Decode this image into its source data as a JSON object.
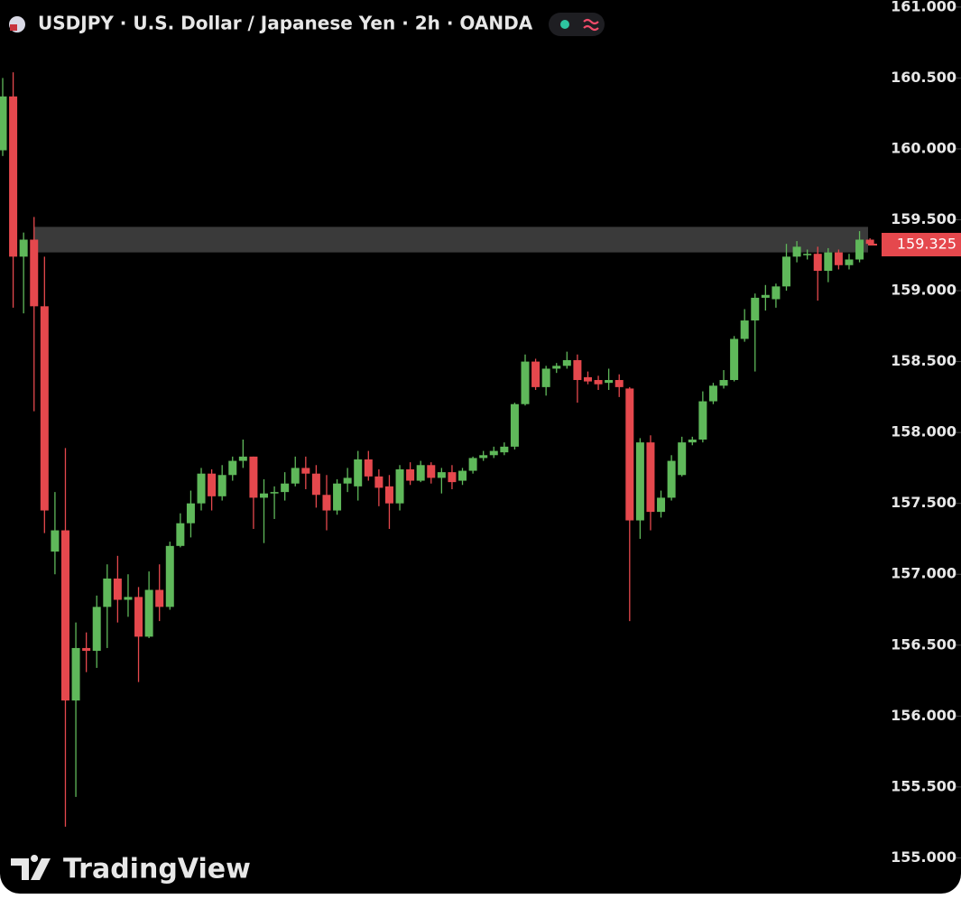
{
  "chart_data": {
    "type": "candlestick",
    "title": "USDJPY · U.S. Dollar / Japanese Yen · 2h · OANDA",
    "watermark": "TradingView",
    "up_color": "#5fb85a",
    "down_color": "#e5484d",
    "open": [
      159.99,
      160.37,
      159.24,
      159.36,
      158.89,
      157.16,
      157.31,
      156.11,
      156.48,
      156.46,
      156.77,
      156.97,
      156.82,
      156.84,
      156.56,
      156.89,
      156.77,
      157.2,
      157.36,
      157.5,
      157.71,
      157.55,
      157.7,
      157.8,
      157.83,
      157.54,
      157.57,
      157.58,
      157.64,
      157.75,
      157.71,
      157.56,
      157.45,
      157.64,
      157.62,
      157.81,
      157.69,
      157.62,
      157.5,
      157.74,
      157.66,
      157.77,
      157.68,
      157.72,
      157.66,
      157.73,
      157.82,
      157.84,
      157.86,
      157.9,
      158.2,
      158.5,
      158.32,
      158.45,
      158.47,
      158.51,
      158.39,
      158.37,
      158.35,
      158.37,
      158.31,
      157.38,
      157.93,
      157.44,
      157.54,
      157.7,
      157.93,
      157.95,
      158.22,
      158.33,
      158.37,
      158.66,
      158.79,
      158.95,
      158.94,
      159.03,
      159.24,
      159.25,
      159.26,
      159.14,
      159.27,
      159.18,
      159.22,
      159.36
    ],
    "high": [
      160.5,
      160.54,
      159.41,
      159.52,
      159.24,
      157.58,
      157.89,
      156.66,
      156.59,
      156.85,
      157.07,
      157.13,
      157.0,
      156.91,
      157.02,
      157.07,
      157.23,
      157.43,
      157.59,
      157.75,
      157.74,
      157.77,
      157.83,
      157.95,
      157.83,
      157.67,
      157.62,
      157.72,
      157.83,
      157.83,
      157.77,
      157.7,
      157.67,
      157.75,
      157.87,
      157.87,
      157.74,
      157.7,
      157.77,
      157.79,
      157.8,
      157.79,
      157.75,
      157.77,
      157.75,
      157.83,
      157.87,
      157.9,
      157.93,
      158.21,
      158.55,
      158.52,
      158.47,
      158.49,
      158.57,
      158.55,
      158.43,
      158.4,
      158.45,
      158.41,
      158.32,
      157.96,
      157.98,
      157.59,
      157.84,
      157.97,
      157.97,
      158.29,
      158.35,
      158.44,
      158.68,
      158.87,
      158.98,
      159.04,
      159.05,
      159.33,
      159.35,
      159.29,
      159.31,
      159.3,
      159.29,
      159.26,
      159.42,
      159.37
    ],
    "low": [
      159.95,
      158.88,
      158.84,
      158.15,
      157.29,
      157.0,
      155.22,
      155.43,
      156.31,
      156.34,
      156.48,
      156.66,
      156.7,
      156.24,
      156.55,
      156.67,
      156.75,
      157.19,
      157.26,
      157.45,
      157.45,
      157.52,
      157.66,
      157.75,
      157.32,
      157.22,
      157.39,
      157.52,
      157.62,
      157.6,
      157.47,
      157.31,
      157.42,
      157.58,
      157.52,
      157.66,
      157.48,
      157.32,
      157.45,
      157.63,
      157.65,
      157.64,
      157.57,
      157.6,
      157.63,
      157.71,
      157.8,
      157.82,
      157.84,
      157.88,
      158.19,
      158.3,
      158.26,
      158.42,
      158.45,
      158.21,
      158.34,
      158.3,
      158.3,
      158.25,
      156.67,
      157.25,
      157.31,
      157.4,
      157.52,
      157.69,
      157.91,
      157.93,
      158.2,
      158.31,
      158.36,
      158.64,
      158.43,
      158.86,
      158.88,
      159.0,
      159.2,
      159.22,
      158.93,
      159.06,
      159.15,
      159.15,
      159.2,
      159.32
    ],
    "close": [
      160.37,
      159.24,
      159.36,
      158.89,
      157.45,
      157.31,
      156.11,
      156.48,
      156.46,
      156.77,
      156.97,
      156.82,
      156.84,
      156.56,
      156.89,
      156.77,
      157.2,
      157.36,
      157.5,
      157.71,
      157.55,
      157.7,
      157.8,
      157.83,
      157.54,
      157.57,
      157.58,
      157.64,
      157.75,
      157.71,
      157.56,
      157.45,
      157.64,
      157.68,
      157.81,
      157.69,
      157.61,
      157.5,
      157.74,
      157.66,
      157.77,
      157.68,
      157.72,
      157.65,
      157.73,
      157.82,
      157.84,
      157.87,
      157.9,
      158.2,
      158.5,
      158.32,
      158.45,
      158.47,
      158.51,
      158.37,
      158.36,
      158.34,
      158.37,
      158.32,
      157.38,
      157.93,
      157.44,
      157.54,
      157.8,
      157.93,
      157.95,
      158.22,
      158.33,
      158.37,
      158.66,
      158.79,
      158.95,
      158.97,
      159.03,
      159.24,
      159.31,
      159.26,
      159.14,
      159.27,
      159.18,
      159.22,
      159.36,
      159.33
    ],
    "zone": [
      159.27,
      159.45
    ],
    "last_price": 159.325,
    "ylim": [
      154.78,
      161.05
    ],
    "yticks": [
      {
        "value": 155,
        "label": "155.000"
      },
      {
        "value": 155.5,
        "label": "155.500"
      },
      {
        "value": 156,
        "label": "156.000"
      },
      {
        "value": 156.5,
        "label": "156.500"
      },
      {
        "value": 157,
        "label": "157.000"
      },
      {
        "value": 157.5,
        "label": "157.500"
      },
      {
        "value": 158,
        "label": "158.000"
      },
      {
        "value": 158.5,
        "label": "158.500"
      },
      {
        "value": 159,
        "label": "159.000"
      },
      {
        "value": 159.5,
        "label": "159.500"
      },
      {
        "value": 160,
        "label": "160.000"
      },
      {
        "value": 160.5,
        "label": "160.500"
      },
      {
        "value": 161,
        "label": "161.000"
      }
    ]
  }
}
